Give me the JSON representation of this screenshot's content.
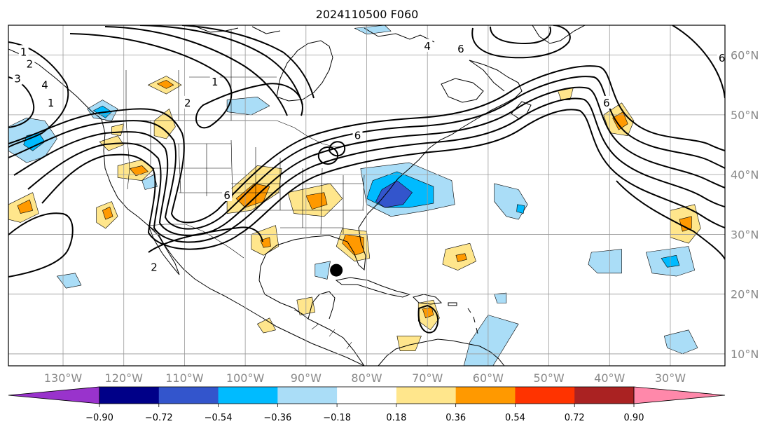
{
  "title": "2024110500 F060",
  "map": {
    "projection": "PlateCarree",
    "lon_range": [
      -139,
      -21
    ],
    "lat_range": [
      8,
      65
    ],
    "grid_lons": [
      -130,
      -120,
      -110,
      -100,
      -90,
      -80,
      -70,
      -60,
      -50,
      -40,
      -30
    ],
    "grid_lats": [
      10,
      20,
      30,
      40,
      50,
      60
    ],
    "lon_labels": [
      "130°W",
      "120°W",
      "110°W",
      "100°W",
      "90°W",
      "80°W",
      "70°W",
      "60°W",
      "50°W",
      "40°W",
      "30°W"
    ],
    "lat_labels": [
      "10°N",
      "20°N",
      "30°N",
      "40°N",
      "50°N",
      "60°N"
    ],
    "gridlines": true,
    "marker": {
      "lon": -85,
      "lat": 24,
      "color": "#000000"
    }
  },
  "colorbar": {
    "levels": [
      -0.9,
      -0.72,
      -0.54,
      -0.36,
      -0.18,
      0.18,
      0.36,
      0.54,
      0.72,
      0.9
    ],
    "tick_labels": [
      "−0.90",
      "−0.72",
      "−0.54",
      "−0.36",
      "−0.18",
      "0.18",
      "0.36",
      "0.54",
      "0.72",
      "0.90"
    ],
    "colors": [
      "#9933cc",
      "#000088",
      "#3355cc",
      "#00bbff",
      "#aaddf7",
      "#ffffff",
      "#ffe68c",
      "#ff9900",
      "#ff3300",
      "#aa2222",
      "#ff88aa"
    ],
    "extend": "both"
  },
  "contours": {
    "labels": [
      {
        "text": "1",
        "lon": -136.5,
        "lat": 60.5
      },
      {
        "text": "2",
        "lon": -135.5,
        "lat": 58.5
      },
      {
        "text": "3",
        "lon": -137.5,
        "lat": 56
      },
      {
        "text": "4",
        "lon": -133,
        "lat": 55
      },
      {
        "text": "1",
        "lon": -132,
        "lat": 52
      },
      {
        "text": "1",
        "lon": -105,
        "lat": 55.5
      },
      {
        "text": "2",
        "lon": -109.5,
        "lat": 52
      },
      {
        "text": "6",
        "lon": -81.5,
        "lat": 46.5
      },
      {
        "text": "6",
        "lon": -103,
        "lat": 36.5
      },
      {
        "text": "2",
        "lon": -115,
        "lat": 24.5
      },
      {
        "text": "4",
        "lon": -70,
        "lat": 61.5
      },
      {
        "text": "6",
        "lon": -64.5,
        "lat": 61
      },
      {
        "text": "6",
        "lon": -40.5,
        "lat": 52
      },
      {
        "text": "6",
        "lon": -21.5,
        "lat": 59.5
      }
    ]
  },
  "fill_regions": [
    {
      "color": "#aaddf7",
      "pts": [
        [
          -139,
          48
        ],
        [
          -136,
          49.5
        ],
        [
          -133,
          49
        ],
        [
          -131,
          46
        ],
        [
          -133,
          43
        ],
        [
          -136,
          42
        ],
        [
          -139,
          44
        ]
      ]
    },
    {
      "color": "#00bbff",
      "pts": [
        [
          -136,
          46.5
        ],
        [
          -134,
          47
        ],
        [
          -133,
          45.5
        ],
        [
          -135,
          44
        ],
        [
          -136.5,
          45
        ]
      ]
    },
    {
      "color": "#aaddf7",
      "pts": [
        [
          -126,
          51
        ],
        [
          -123.5,
          52.5
        ],
        [
          -121,
          51
        ],
        [
          -122,
          49
        ],
        [
          -125,
          49.5
        ]
      ]
    },
    {
      "color": "#00bbff",
      "pts": [
        [
          -125,
          50.7
        ],
        [
          -123.5,
          51.5
        ],
        [
          -122,
          50.5
        ],
        [
          -123,
          49.5
        ]
      ]
    },
    {
      "color": "#aaddf7",
      "pts": [
        [
          -103,
          52.5
        ],
        [
          -98,
          53
        ],
        [
          -96,
          51.5
        ],
        [
          -99,
          50
        ],
        [
          -103,
          50.5
        ]
      ]
    },
    {
      "color": "#aaddf7",
      "pts": [
        [
          -82,
          64.5
        ],
        [
          -77,
          65
        ],
        [
          -76,
          64
        ],
        [
          -80,
          63.5
        ]
      ]
    },
    {
      "color": "#ffe68c",
      "pts": [
        [
          -116,
          55
        ],
        [
          -113,
          56.5
        ],
        [
          -110.5,
          55
        ],
        [
          -113,
          53.5
        ]
      ]
    },
    {
      "color": "#ff9900",
      "pts": [
        [
          -114.5,
          55.2
        ],
        [
          -113,
          55.8
        ],
        [
          -111.8,
          55
        ],
        [
          -113,
          54.4
        ]
      ]
    },
    {
      "color": "#ffe68c",
      "pts": [
        [
          -115,
          49
        ],
        [
          -112.5,
          51
        ],
        [
          -111.5,
          48
        ],
        [
          -113,
          46
        ],
        [
          -115,
          46.5
        ]
      ]
    },
    {
      "color": "#ffe68c",
      "pts": [
        [
          -124,
          45.5
        ],
        [
          -121,
          46.5
        ],
        [
          -120,
          45
        ],
        [
          -122.5,
          44
        ]
      ]
    },
    {
      "color": "#ffe68c",
      "pts": [
        [
          -121,
          41.5
        ],
        [
          -117,
          42.5
        ],
        [
          -115,
          41
        ],
        [
          -117,
          39
        ],
        [
          -121,
          39.5
        ]
      ]
    },
    {
      "color": "#ff9900",
      "pts": [
        [
          -119,
          41
        ],
        [
          -117,
          41.5
        ],
        [
          -116,
          40.5
        ],
        [
          -118,
          39.8
        ]
      ]
    },
    {
      "color": "#ffe68c",
      "pts": [
        [
          -139,
          35
        ],
        [
          -135,
          37
        ],
        [
          -134,
          33.5
        ],
        [
          -137,
          32
        ],
        [
          -139,
          32.5
        ]
      ]
    },
    {
      "color": "#ff9900",
      "pts": [
        [
          -137.5,
          34.8
        ],
        [
          -135.5,
          35.8
        ],
        [
          -135,
          34
        ],
        [
          -137,
          33.5
        ]
      ]
    },
    {
      "color": "#ffe68c",
      "pts": [
        [
          -124.5,
          34.5
        ],
        [
          -122,
          35.5
        ],
        [
          -121,
          33
        ],
        [
          -123,
          31
        ],
        [
          -124.5,
          32
        ]
      ]
    },
    {
      "color": "#ff9900",
      "pts": [
        [
          -123.5,
          34
        ],
        [
          -122.3,
          34.6
        ],
        [
          -121.8,
          33
        ],
        [
          -123,
          32.5
        ]
      ]
    },
    {
      "color": "#ffe68c",
      "pts": [
        [
          -103,
          37
        ],
        [
          -98,
          41.5
        ],
        [
          -94,
          41
        ],
        [
          -94.5,
          37
        ],
        [
          -99,
          34
        ],
        [
          -103,
          33.5
        ]
      ]
    },
    {
      "color": "#ff9900",
      "pts": [
        [
          -101.5,
          36
        ],
        [
          -98.5,
          38.5
        ],
        [
          -96,
          38
        ],
        [
          -97,
          35.5
        ],
        [
          -100,
          34.5
        ]
      ]
    },
    {
      "color": "#ffe68c",
      "pts": [
        [
          -93,
          37
        ],
        [
          -86,
          38.5
        ],
        [
          -84,
          36
        ],
        [
          -87,
          33
        ],
        [
          -92,
          33.5
        ]
      ]
    },
    {
      "color": "#ff9900",
      "pts": [
        [
          -90,
          36.5
        ],
        [
          -87,
          37
        ],
        [
          -86.5,
          35
        ],
        [
          -89,
          34.2
        ]
      ]
    },
    {
      "color": "#ffe68c",
      "pts": [
        [
          -99,
          30
        ],
        [
          -95,
          31.5
        ],
        [
          -94.5,
          28
        ],
        [
          -97,
          26.5
        ],
        [
          -99,
          27.5
        ]
      ]
    },
    {
      "color": "#ff9900",
      "pts": [
        [
          -97.5,
          29
        ],
        [
          -96,
          29.5
        ],
        [
          -95.8,
          28
        ],
        [
          -97,
          27.8
        ]
      ]
    },
    {
      "color": "#ffe68c",
      "pts": [
        [
          -84,
          31
        ],
        [
          -80,
          30.5
        ],
        [
          -79.5,
          26
        ],
        [
          -82,
          25.5
        ],
        [
          -85,
          28
        ]
      ]
    },
    {
      "color": "#ff9900",
      "pts": [
        [
          -83.5,
          30
        ],
        [
          -80.5,
          29.5
        ],
        [
          -80.5,
          27
        ],
        [
          -82,
          26.5
        ],
        [
          -84,
          28.5
        ]
      ]
    },
    {
      "color": "#ffe68c",
      "pts": [
        [
          -67,
          27.5
        ],
        [
          -63,
          28.5
        ],
        [
          -62,
          25.5
        ],
        [
          -65,
          24
        ],
        [
          -67.5,
          25
        ]
      ]
    },
    {
      "color": "#ff9900",
      "pts": [
        [
          -65.3,
          26.5
        ],
        [
          -63.8,
          26.8
        ],
        [
          -63.5,
          25.8
        ],
        [
          -65,
          25.4
        ]
      ]
    },
    {
      "color": "#ffe68c",
      "pts": [
        [
          -41,
          50
        ],
        [
          -38,
          52
        ],
        [
          -36,
          49
        ],
        [
          -37,
          46.5
        ],
        [
          -40,
          47
        ]
      ]
    },
    {
      "color": "#ff9900",
      "pts": [
        [
          -39.5,
          49.5
        ],
        [
          -37.8,
          50.5
        ],
        [
          -37,
          48.5
        ],
        [
          -38.5,
          47.5
        ]
      ]
    },
    {
      "color": "#ffe68c",
      "pts": [
        [
          -30,
          34
        ],
        [
          -26,
          35
        ],
        [
          -25,
          31
        ],
        [
          -27,
          28.5
        ],
        [
          -30,
          29.5
        ]
      ]
    },
    {
      "color": "#ff9900",
      "pts": [
        [
          -28.5,
          32.5
        ],
        [
          -26.5,
          33
        ],
        [
          -26.5,
          31
        ],
        [
          -28,
          30.5
        ]
      ]
    },
    {
      "color": "#ffe68c",
      "pts": [
        [
          -71.5,
          18.5
        ],
        [
          -69,
          19
        ],
        [
          -68,
          16
        ],
        [
          -69.5,
          14
        ],
        [
          -71.5,
          15.5
        ]
      ]
    },
    {
      "color": "#ff9900",
      "pts": [
        [
          -70.8,
          17.5
        ],
        [
          -69.3,
          17.8
        ],
        [
          -69,
          16.5
        ],
        [
          -70.3,
          16
        ]
      ]
    },
    {
      "color": "#ffe68c",
      "pts": [
        [
          -91.5,
          19
        ],
        [
          -89,
          19.5
        ],
        [
          -88.5,
          17
        ],
        [
          -91,
          16.5
        ]
      ]
    },
    {
      "color": "#ffe68c",
      "pts": [
        [
          -75,
          13
        ],
        [
          -71,
          13
        ],
        [
          -72,
          10.5
        ],
        [
          -74.5,
          10.5
        ]
      ]
    },
    {
      "color": "#ffe68c",
      "pts": [
        [
          -48.5,
          54
        ],
        [
          -46,
          54.5
        ],
        [
          -46.5,
          52.5
        ],
        [
          -48,
          52.5
        ]
      ]
    },
    {
      "color": "#ffe68c",
      "pts": [
        [
          -122,
          48
        ],
        [
          -120,
          48.5
        ],
        [
          -120.5,
          46.5
        ],
        [
          -122,
          46.8
        ]
      ]
    },
    {
      "color": "#ffe68c",
      "pts": [
        [
          -98,
          15
        ],
        [
          -96,
          16
        ],
        [
          -95,
          14
        ],
        [
          -97,
          13.5
        ]
      ]
    },
    {
      "color": "#aaddf7",
      "pts": [
        [
          -81,
          41
        ],
        [
          -73,
          42
        ],
        [
          -66,
          39
        ],
        [
          -65.5,
          35
        ],
        [
          -70,
          34
        ],
        [
          -76,
          33
        ],
        [
          -80,
          35
        ]
      ]
    },
    {
      "color": "#00bbff",
      "pts": [
        [
          -79,
          39
        ],
        [
          -75,
          40.5
        ],
        [
          -69,
          38
        ],
        [
          -69,
          35.2
        ],
        [
          -73,
          34.5
        ],
        [
          -77,
          34.5
        ],
        [
          -80,
          36
        ]
      ]
    },
    {
      "color": "#3355cc",
      "pts": [
        [
          -77.5,
          37.5
        ],
        [
          -75,
          39
        ],
        [
          -72.5,
          37
        ],
        [
          -74,
          35
        ],
        [
          -77,
          34.5
        ],
        [
          -78.5,
          35.5
        ]
      ]
    },
    {
      "color": "#aaddf7",
      "pts": [
        [
          -59,
          38.5
        ],
        [
          -55,
          37.5
        ],
        [
          -53.5,
          35
        ],
        [
          -55,
          32.5
        ],
        [
          -57,
          33
        ],
        [
          -59,
          35.5
        ]
      ]
    },
    {
      "color": "#00bbff",
      "pts": [
        [
          -55.2,
          35
        ],
        [
          -54,
          34.8
        ],
        [
          -54.2,
          33.5
        ],
        [
          -55.3,
          33.8
        ]
      ]
    },
    {
      "color": "#aaddf7",
      "pts": [
        [
          -43,
          27
        ],
        [
          -38,
          27.5
        ],
        [
          -38,
          23.5
        ],
        [
          -42,
          23.5
        ],
        [
          -43.5,
          25
        ]
      ]
    },
    {
      "color": "#aaddf7",
      "pts": [
        [
          -34,
          27
        ],
        [
          -27,
          28
        ],
        [
          -26,
          24
        ],
        [
          -29,
          23
        ],
        [
          -33,
          23.5
        ]
      ]
    },
    {
      "color": "#00bbff",
      "pts": [
        [
          -31.5,
          26
        ],
        [
          -29,
          26.5
        ],
        [
          -28.5,
          24.8
        ],
        [
          -30.5,
          24.5
        ]
      ]
    },
    {
      "color": "#aaddf7",
      "pts": [
        [
          -88.5,
          25
        ],
        [
          -86,
          25.5
        ],
        [
          -86.5,
          22.5
        ],
        [
          -88.5,
          23
        ]
      ]
    },
    {
      "color": "#aaddf7",
      "pts": [
        [
          -61,
          5
        ],
        [
          -55,
          15
        ],
        [
          -60,
          16.5
        ],
        [
          -63,
          12
        ],
        [
          -64,
          8
        ]
      ]
    },
    {
      "color": "#aaddf7",
      "pts": [
        [
          -59,
          20
        ],
        [
          -57,
          20.2
        ],
        [
          -57,
          18.5
        ],
        [
          -58.5,
          18.5
        ]
      ]
    },
    {
      "color": "#aaddf7",
      "pts": [
        [
          -131,
          23
        ],
        [
          -128,
          23.5
        ],
        [
          -127,
          21.5
        ],
        [
          -129.5,
          21
        ]
      ]
    },
    {
      "color": "#aaddf7",
      "pts": [
        [
          -117,
          39
        ],
        [
          -115,
          40
        ],
        [
          -114.5,
          38
        ],
        [
          -116.5,
          37.5
        ]
      ]
    },
    {
      "color": "#aaddf7",
      "pts": [
        [
          -31,
          13
        ],
        [
          -27,
          14
        ],
        [
          -25.5,
          11
        ],
        [
          -28,
          10
        ],
        [
          -30.5,
          11
        ]
      ]
    }
  ]
}
